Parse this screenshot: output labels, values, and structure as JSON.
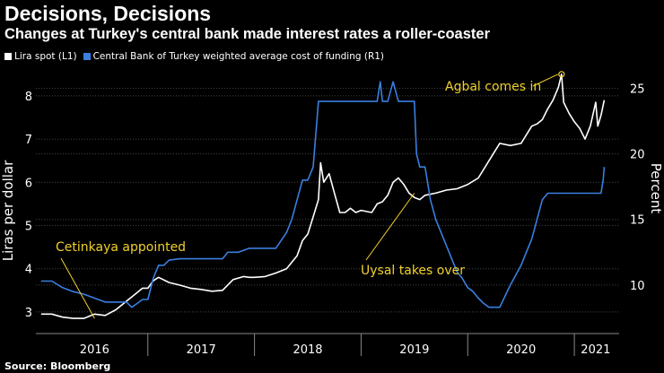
{
  "colors": {
    "lira": "#ffffff",
    "cbrt": "#3a7fe0",
    "annotation": "#f0d02c",
    "grid": "#444444",
    "background": "#000000"
  },
  "chart_data": {
    "type": "line",
    "title": "Decisions, Decisions",
    "subtitle": "Changes at Turkey's central bank made interest rates a roller-coaster",
    "source": "Source: Bloomberg",
    "ylabel_left": "Liras per dollar",
    "ylabel_right": "Percent",
    "ylim_left": [
      2.5,
      8.6
    ],
    "ylim_right": [
      6.3,
      26.4
    ],
    "xlim": [
      2015.95,
      2021.42
    ],
    "grid": true,
    "legend_position": "top-left",
    "legend": [
      "Lira spot (L1)",
      "Central Bank of Turkey weighted average cost of funding (R1)"
    ],
    "x_ticks": [
      {
        "label": "2016",
        "center": 2016.5
      },
      {
        "label": "2017",
        "center": 2017.5
      },
      {
        "label": "2018",
        "center": 2018.5
      },
      {
        "label": "2019",
        "center": 2019.5
      },
      {
        "label": "2020",
        "center": 2020.5
      },
      {
        "label": "2021",
        "center": 2021.2
      }
    ],
    "x_dividers": [
      2017.0,
      2018.0,
      2019.0,
      2020.0,
      2021.0
    ],
    "y_ticks_left": [
      3,
      4,
      5,
      6,
      7,
      8
    ],
    "y_ticks_right": [
      10,
      15,
      20,
      25
    ],
    "series": [
      {
        "name": "Lira spot (L1)",
        "axis": "left",
        "x": [
          2016.0,
          2016.1,
          2016.2,
          2016.3,
          2016.4,
          2016.5,
          2016.6,
          2016.7,
          2016.8,
          2016.9,
          2016.95,
          2017.0,
          2017.05,
          2017.1,
          2017.2,
          2017.3,
          2017.4,
          2017.5,
          2017.6,
          2017.7,
          2017.8,
          2017.9,
          2017.95,
          2018.0,
          2018.1,
          2018.2,
          2018.3,
          2018.4,
          2018.45,
          2018.5,
          2018.55,
          2018.6,
          2018.62,
          2018.65,
          2018.7,
          2018.75,
          2018.8,
          2018.85,
          2018.9,
          2018.95,
          2019.0,
          2019.1,
          2019.15,
          2019.2,
          2019.25,
          2019.3,
          2019.35,
          2019.4,
          2019.45,
          2019.5,
          2019.55,
          2019.6,
          2019.7,
          2019.8,
          2019.9,
          2020.0,
          2020.1,
          2020.2,
          2020.3,
          2020.4,
          2020.5,
          2020.6,
          2020.65,
          2020.7,
          2020.75,
          2020.8,
          2020.85,
          2020.88,
          2020.9,
          2020.95,
          2021.0,
          2021.05,
          2021.1,
          2021.15,
          2021.2,
          2021.22,
          2021.25,
          2021.28
        ],
        "values": [
          2.95,
          2.95,
          2.88,
          2.85,
          2.85,
          2.95,
          2.92,
          3.05,
          3.25,
          3.45,
          3.55,
          3.55,
          3.72,
          3.8,
          3.68,
          3.62,
          3.55,
          3.52,
          3.48,
          3.5,
          3.75,
          3.82,
          3.8,
          3.8,
          3.82,
          3.9,
          4.0,
          4.3,
          4.65,
          4.8,
          5.2,
          5.6,
          6.45,
          6.0,
          6.2,
          5.75,
          5.3,
          5.3,
          5.4,
          5.3,
          5.35,
          5.3,
          5.5,
          5.55,
          5.7,
          6.0,
          6.1,
          5.95,
          5.75,
          5.65,
          5.6,
          5.7,
          5.75,
          5.82,
          5.85,
          5.95,
          6.1,
          6.5,
          6.9,
          6.85,
          6.9,
          7.3,
          7.35,
          7.45,
          7.7,
          7.9,
          8.2,
          8.5,
          7.85,
          7.6,
          7.4,
          7.25,
          7.0,
          7.3,
          7.85,
          7.3,
          7.55,
          7.9
        ]
      },
      {
        "name": "Central Bank of Turkey weighted average cost of funding (R1)",
        "axis": "right",
        "x": [
          2016.0,
          2016.1,
          2016.2,
          2016.3,
          2016.4,
          2016.5,
          2016.6,
          2016.7,
          2016.75,
          2016.8,
          2016.85,
          2016.9,
          2016.95,
          2017.0,
          2017.05,
          2017.1,
          2017.15,
          2017.2,
          2017.3,
          2017.4,
          2017.5,
          2017.6,
          2017.7,
          2017.75,
          2017.85,
          2017.95,
          2018.0,
          2018.1,
          2018.2,
          2018.3,
          2018.35,
          2018.4,
          2018.45,
          2018.5,
          2018.55,
          2018.6,
          2018.65,
          2018.7,
          2018.8,
          2018.9,
          2019.0,
          2019.1,
          2019.15,
          2019.18,
          2019.2,
          2019.25,
          2019.3,
          2019.35,
          2019.4,
          2019.45,
          2019.5,
          2019.52,
          2019.55,
          2019.6,
          2019.65,
          2019.7,
          2019.75,
          2019.8,
          2019.85,
          2019.9,
          2019.95,
          2020.0,
          2020.05,
          2020.1,
          2020.15,
          2020.2,
          2020.3,
          2020.4,
          2020.5,
          2020.55,
          2020.6,
          2020.65,
          2020.7,
          2020.75,
          2020.8,
          2020.85,
          2020.9,
          2020.95,
          2021.0,
          2021.1,
          2021.2,
          2021.25,
          2021.27,
          2021.28
        ],
        "values": [
          10.3,
          10.3,
          9.8,
          9.5,
          9.3,
          9.0,
          8.7,
          8.7,
          8.7,
          8.7,
          8.3,
          8.6,
          8.9,
          8.9,
          10.5,
          11.5,
          11.5,
          11.9,
          12.0,
          12.0,
          12.0,
          12.0,
          12.0,
          12.5,
          12.5,
          12.8,
          12.8,
          12.8,
          12.8,
          14.0,
          15.0,
          16.5,
          18.0,
          18.0,
          19.0,
          24.0,
          24.0,
          24.0,
          24.0,
          24.0,
          24.0,
          24.0,
          24.0,
          25.5,
          24.0,
          24.0,
          25.5,
          24.0,
          24.0,
          24.0,
          24.0,
          20.0,
          19.0,
          19.0,
          16.5,
          15.0,
          14.0,
          13.0,
          12.0,
          11.0,
          10.5,
          9.8,
          9.5,
          9.0,
          8.6,
          8.3,
          8.3,
          10.0,
          11.5,
          12.5,
          13.5,
          15.0,
          16.5,
          17.0,
          17.0,
          17.0,
          17.0,
          17.0,
          17.0,
          17.0,
          17.0,
          17.0,
          18.0,
          19.0
        ]
      }
    ],
    "annotations": [
      {
        "text": "Cetinkaya appointed",
        "x": 2016.5,
        "y": 2.85,
        "axis": "left"
      },
      {
        "text": "Uysal takes over",
        "x": 2019.5,
        "y": 5.75,
        "axis": "left"
      },
      {
        "text": "Agbal comes in",
        "x": 2020.88,
        "y": 8.5,
        "axis": "left"
      }
    ]
  }
}
